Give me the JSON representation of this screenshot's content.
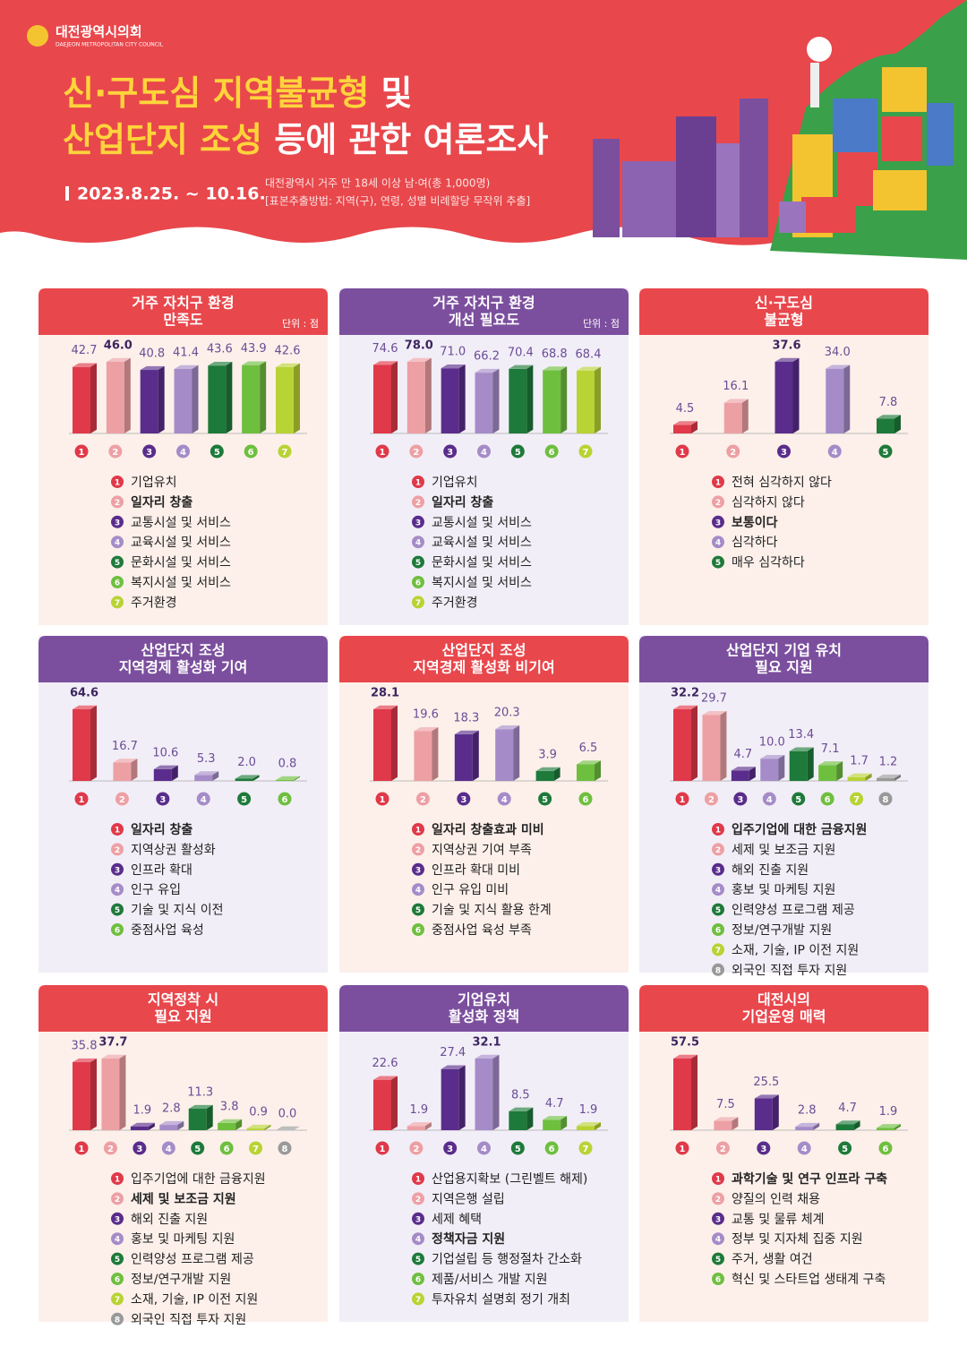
{
  "header": {
    "org": "대전광역시의회",
    "org_en": "DAEJEON METROPOLITAN CITY COUNCIL",
    "title_line1_em": "신·구도심 지역불균형",
    "title_line1": " 및",
    "title_line2_em": "산업단지 조성",
    "title_line2": " 등에 관한 여론조사",
    "period": "2023.8.25. ~ 10.16.",
    "note1": "대전광역시 거주 만 18세 이상 남·여(총 1,000명)",
    "note2": "[표본추출방법: 지역(구), 연령, 성별 비례할당 무작위 추출]"
  },
  "chart_data": [
    {
      "type": "bar",
      "title": [
        "거주 자치구 환경",
        "만족도"
      ],
      "unit": "단위 : 점",
      "header_color": "#e8474c",
      "background": "#fdf0ea",
      "category_numbers": [
        1,
        2,
        3,
        4,
        5,
        6,
        7
      ],
      "categories": [
        "기업유치",
        "일자리 창출",
        "교통시설 및 서비스",
        "교육시설 및 서비스",
        "문화시설 및 서비스",
        "복지시설 및 서비스",
        "주거환경"
      ],
      "values": [
        42.7,
        46.0,
        40.8,
        41.4,
        43.6,
        43.9,
        42.6
      ],
      "value_labels": [
        "42.7",
        "46.0",
        "40.8",
        "41.4",
        "43.6",
        "43.9",
        "42.6"
      ],
      "highlight": 1,
      "colors": [
        "#e0394a",
        "#eda0a4",
        "#5a2d8c",
        "#a58cc8",
        "#1e7a3a",
        "#6fbf3f",
        "#b8d334"
      ]
    },
    {
      "type": "bar",
      "title": [
        "거주 자치구 환경",
        "개선 필요도"
      ],
      "unit": "단위 : 점",
      "header_color": "#7b4f9e",
      "background": "#f2eef7",
      "category_numbers": [
        1,
        2,
        3,
        4,
        5,
        6,
        7
      ],
      "categories": [
        "기업유치",
        "일자리 창출",
        "교통시설 및 서비스",
        "교육시설 및 서비스",
        "문화시설 및 서비스",
        "복지시설 및 서비스",
        "주거환경"
      ],
      "values": [
        74.6,
        78.0,
        71.0,
        66.2,
        70.4,
        68.8,
        68.4
      ],
      "value_labels": [
        "74.6",
        "78.0",
        "71.0",
        "66.2",
        "70.4",
        "68.8",
        "68.4"
      ],
      "highlight": 1,
      "colors": [
        "#e0394a",
        "#eda0a4",
        "#5a2d8c",
        "#a58cc8",
        "#1e7a3a",
        "#6fbf3f",
        "#b8d334"
      ]
    },
    {
      "type": "bar",
      "title": [
        "신·구도심",
        "불균형"
      ],
      "header_color": "#e8474c",
      "background": "#fdf0ea",
      "category_numbers": [
        1,
        2,
        3,
        4,
        5
      ],
      "categories": [
        "전혀 심각하지 않다",
        "심각하지 않다",
        "보통이다",
        "심각하다",
        "매우 심각하다"
      ],
      "values": [
        4.5,
        16.1,
        37.6,
        34.0,
        7.8
      ],
      "value_labels": [
        "4.5",
        "16.1",
        "37.6",
        "34.0",
        "7.8"
      ],
      "highlight": 2,
      "colors": [
        "#e0394a",
        "#eda0a4",
        "#5a2d8c",
        "#a58cc8",
        "#1e7a3a"
      ]
    },
    {
      "type": "bar",
      "title": [
        "산업단지 조성",
        "지역경제 활성화 기여"
      ],
      "header_color": "#7b4f9e",
      "background": "#f2eef7",
      "category_numbers": [
        1,
        2,
        3,
        4,
        5,
        6
      ],
      "categories": [
        "일자리 창출",
        "지역상권 활성화",
        "인프라 확대",
        "인구 유입",
        "기술 및 지식 이전",
        "중점사업 육성"
      ],
      "values": [
        64.6,
        16.7,
        10.6,
        5.3,
        2.0,
        0.8
      ],
      "value_labels": [
        "64.6",
        "16.7",
        "10.6",
        "5.3",
        "2.0",
        "0.8"
      ],
      "highlight": 0,
      "colors": [
        "#e0394a",
        "#eda0a4",
        "#5a2d8c",
        "#a58cc8",
        "#1e7a3a",
        "#6fbf3f"
      ]
    },
    {
      "type": "bar",
      "title": [
        "산업단지 조성",
        "지역경제 활성화 비기여"
      ],
      "header_color": "#e8474c",
      "background": "#fdf0ea",
      "category_numbers": [
        1,
        2,
        3,
        4,
        5,
        6
      ],
      "categories": [
        "일자리 창출효과 미비",
        "지역상권 기여 부족",
        "인프라 확대 미비",
        "인구 유입 미비",
        "기술 및 지식 활용 한계",
        "중점사업 육성 부족"
      ],
      "values": [
        28.1,
        19.6,
        18.3,
        20.3,
        3.9,
        6.5
      ],
      "value_labels": [
        "28.1",
        "19.6",
        "18.3",
        "20.3",
        "3.9",
        "6.5"
      ],
      "highlight": 0,
      "colors": [
        "#e0394a",
        "#eda0a4",
        "#5a2d8c",
        "#a58cc8",
        "#1e7a3a",
        "#6fbf3f"
      ]
    },
    {
      "type": "bar",
      "title": [
        "산업단지 기업 유치",
        "필요 지원"
      ],
      "header_color": "#7b4f9e",
      "background": "#f2eef7",
      "category_numbers": [
        1,
        2,
        3,
        4,
        5,
        6,
        7,
        8
      ],
      "categories": [
        "입주기업에 대한 금융지원",
        "세제 및 보조금 지원",
        "해외 진출 지원",
        "홍보 및 마케팅 지원",
        "인력양성 프로그램 제공",
        "정보/연구개발 지원",
        "소재, 기술, IP 이전 지원",
        "외국인 직접 투자 지원"
      ],
      "values": [
        32.2,
        29.7,
        4.7,
        10.0,
        13.4,
        7.1,
        1.7,
        1.2
      ],
      "value_labels": [
        "32.2",
        "29.7",
        "4.7",
        "10.0",
        "13.4",
        "7.1",
        "1.7",
        "1.2"
      ],
      "highlight": 0,
      "colors": [
        "#e0394a",
        "#eda0a4",
        "#5a2d8c",
        "#a58cc8",
        "#1e7a3a",
        "#6fbf3f",
        "#b8d334",
        "#999999"
      ]
    },
    {
      "type": "bar",
      "title": [
        "지역정착 시",
        "필요 지원"
      ],
      "header_color": "#e8474c",
      "background": "#fdf0ea",
      "category_numbers": [
        1,
        2,
        3,
        4,
        5,
        6,
        7,
        8
      ],
      "categories": [
        "입주기업에 대한 금융지원",
        "세제 및 보조금 지원",
        "해외 진출 지원",
        "홍보 및 마케팅 지원",
        "인력양성 프로그램 제공",
        "정보/연구개발 지원",
        "소재, 기술, IP 이전 지원",
        "외국인 직접 투자 지원"
      ],
      "values": [
        35.8,
        37.7,
        1.9,
        2.8,
        11.3,
        3.8,
        0.9,
        0.0
      ],
      "value_labels": [
        "35.8",
        "37.7",
        "1.9",
        "2.8",
        "11.3",
        "3.8",
        "0.9",
        "0.0"
      ],
      "highlight": 1,
      "colors": [
        "#e0394a",
        "#eda0a4",
        "#5a2d8c",
        "#a58cc8",
        "#1e7a3a",
        "#6fbf3f",
        "#b8d334",
        "#999999"
      ]
    },
    {
      "type": "bar",
      "title": [
        "기업유치",
        "활성화 정책"
      ],
      "header_color": "#7b4f9e",
      "background": "#f2eef7",
      "category_numbers": [
        1,
        2,
        3,
        4,
        5,
        6,
        7
      ],
      "categories": [
        "산업용지확보 (그린벨트 해제)",
        "지역은행 설립",
        "세제 혜택",
        "정책자금 지원",
        "기업설립 등 행정절차 간소화",
        "제품/서비스 개발 지원",
        "투자유치 설명회 정기 개최"
      ],
      "values": [
        22.6,
        1.9,
        27.4,
        32.1,
        8.5,
        4.7,
        1.9
      ],
      "value_labels": [
        "22.6",
        "1.9",
        "27.4",
        "32.1",
        "8.5",
        "4.7",
        "1.9"
      ],
      "highlight": 3,
      "colors": [
        "#e0394a",
        "#eda0a4",
        "#5a2d8c",
        "#a58cc8",
        "#1e7a3a",
        "#6fbf3f",
        "#b8d334"
      ]
    },
    {
      "type": "bar",
      "title": [
        "대전시의",
        "기업운영 매력"
      ],
      "header_color": "#e8474c",
      "background": "#fdf0ea",
      "category_numbers": [
        1,
        2,
        3,
        4,
        5,
        6
      ],
      "categories": [
        "과학기술 및 연구 인프라 구축",
        "양질의 인력 채용",
        "교통 및 물류 체계",
        "정부 및 지자체 집중 지원",
        "주거, 생활 여건",
        "혁신 및 스타트업 생태계 구축"
      ],
      "values": [
        57.5,
        7.5,
        25.5,
        2.8,
        4.7,
        1.9
      ],
      "value_labels": [
        "57.5",
        "7.5",
        "25.5",
        "2.8",
        "4.7",
        "1.9"
      ],
      "highlight": 0,
      "colors": [
        "#e0394a",
        "#eda0a4",
        "#5a2d8c",
        "#a58cc8",
        "#1e7a3a",
        "#6fbf3f"
      ]
    }
  ]
}
